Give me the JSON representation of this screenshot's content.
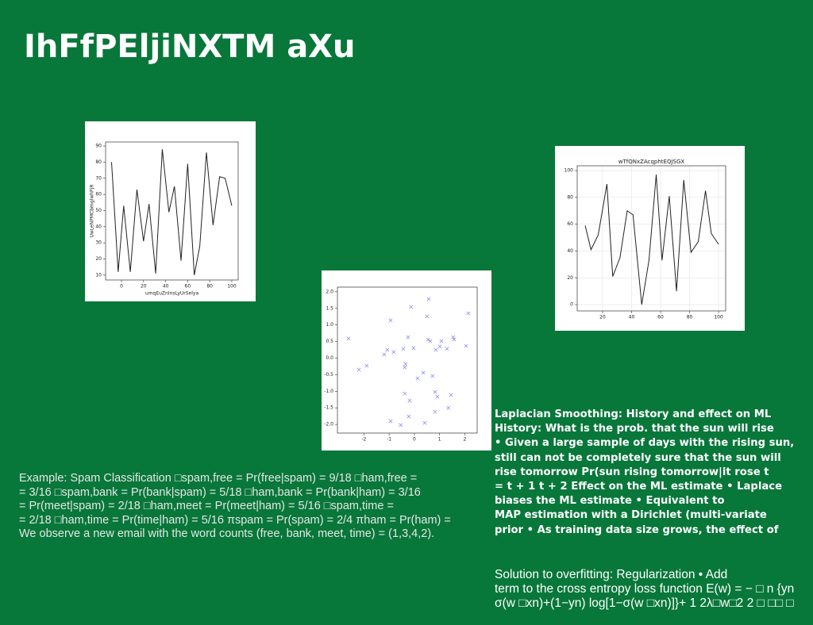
{
  "title": "IhFfPEljiNXTM aXu",
  "example_text": {
    "lines": [
      "Example: Spam Classification □spam,free = Pr(free|spam) = 9/18 □ham,free =",
      "= 3/16 □spam,bank = Pr(bank|spam) = 5/18 □ham,bank = Pr(bank|ham) = 3/16",
      "= Pr(meet|spam) = 2/18 □ham,meet = Pr(meet|ham) = 5/16 □spam,time =",
      "= 2/18 □ham,time = Pr(time|ham) = 5/16 πspam = Pr(spam) = 2/4 πham = Pr(ham) =",
      "We observe a new email with the word counts (free, bank, meet, time) = (1,3,4,2)."
    ]
  },
  "laplacian_text": {
    "lines": [
      "Laplacian Smoothing: History and effect on ML",
      "History: What is the prob. that the sun will rise",
      "• Given a large sample of days with the rising sun,",
      "still can not be completely sure that the sun will",
      "rise tomorrow Pr(sun rising tomorrow|it rose t",
      "= t + 1 t + 2 Effect on the ML estimate • Laplace",
      "biases the ML estimate • Equivalent to",
      "MAP estimation with a Dirichlet (multi-variate",
      "prior • As training data size grows, the effect of"
    ]
  },
  "regularization_text": {
    "lines": [
      "Solution to overfitting: Regularization • Add",
      "term to the cross entropy loss function E(w) = − □ n {yn",
      "σ(w □xn)+(1−yn) log[1−σ(w □xn)]}+ 1 2λ□w□2 2 □ □□ □"
    ]
  },
  "chart_data": [
    {
      "type": "line",
      "x_label": "umqEuZnInsLyUrSelya",
      "y_label": "UwLeNPMCbmglwhPjR",
      "color": "#222222",
      "x": [
        -9,
        -3,
        2,
        8,
        14,
        20,
        25,
        31,
        37,
        43,
        48,
        54,
        60,
        66,
        71,
        77,
        83,
        89,
        94,
        100
      ],
      "values": [
        80,
        12,
        53,
        12,
        63,
        31,
        54,
        11,
        88,
        49,
        65,
        19,
        79,
        10,
        28,
        86,
        41,
        71,
        70,
        53
      ],
      "xlim": [
        -14.4,
        105.8
      ],
      "ylim": [
        7,
        92.5
      ],
      "xticks": [
        0,
        20,
        40,
        60,
        80,
        100
      ],
      "yticks": [
        10,
        20,
        30,
        40,
        50,
        60,
        70,
        80,
        90
      ]
    },
    {
      "type": "scatter",
      "color": "#5a5af0",
      "x": [
        -2.61,
        -2.2,
        -1.89,
        -1.2,
        -1.07,
        -0.82,
        -0.94,
        -0.44,
        -0.38,
        -0.35,
        -0.13,
        -0.03,
        -0.25,
        -0.38,
        -0.19,
        -0.22,
        -0.94,
        -0.54,
        0.41,
        0.57,
        0.5,
        0.54,
        0.63,
        0.72,
        0.82,
        0.91,
        0.85,
        0.82,
        1.01,
        1.07,
        1.29,
        1.35,
        1.45,
        1.54,
        1.57,
        2.14,
        2.05,
        0.13,
        0.35
      ],
      "values": [
        0.59,
        -0.35,
        -0.23,
        0.11,
        0.25,
        0.18,
        1.14,
        0.28,
        -0.28,
        -0.18,
        1.54,
        0.3,
        0.63,
        -1.07,
        -1.28,
        -1.76,
        -1.9,
        -2.02,
        -1.95,
        1.78,
        1.26,
        0.56,
        0.51,
        -0.54,
        -1.02,
        -1.16,
        0.25,
        -1.62,
        0.35,
        0.51,
        0.28,
        -1.5,
        -1.11,
        0.63,
        0.56,
        1.35,
        0.37,
        -0.61,
        -0.44
      ],
      "xlim": [
        -3.05,
        2.49
      ],
      "ylim": [
        -2.26,
        2.14
      ],
      "xticks": [
        -2,
        -1,
        0,
        1,
        2
      ],
      "yticks": [
        {
          "value": -2,
          "label": "-2.0"
        },
        -1.5,
        {
          "value": -1,
          "label": "-1.0"
        },
        -0.5,
        {
          "value": 0,
          "label": "0.0"
        },
        0.5,
        {
          "value": 1,
          "label": "1.0"
        },
        1.5,
        {
          "value": 2,
          "label": "2.0"
        }
      ]
    },
    {
      "type": "line",
      "title": "wTfQNxZAcqphtEQJSGX",
      "color": "#222222",
      "x": [
        8,
        12,
        17,
        23,
        27,
        32,
        37,
        41,
        47,
        52,
        57,
        61,
        66,
        71,
        76,
        81,
        86,
        91,
        95,
        100
      ],
      "values": [
        59,
        41,
        52,
        90,
        21,
        35,
        70,
        67,
        0,
        33,
        97,
        33,
        81,
        10,
        93,
        39,
        47,
        85,
        53,
        45
      ],
      "xlim": [
        2.5,
        104.9
      ],
      "ylim": [
        -4.7,
        103.6
      ],
      "xticks": [
        20,
        40,
        60,
        80,
        100
      ],
      "yticks": [
        0,
        20,
        40,
        60,
        80,
        100
      ],
      "grid": true
    }
  ]
}
